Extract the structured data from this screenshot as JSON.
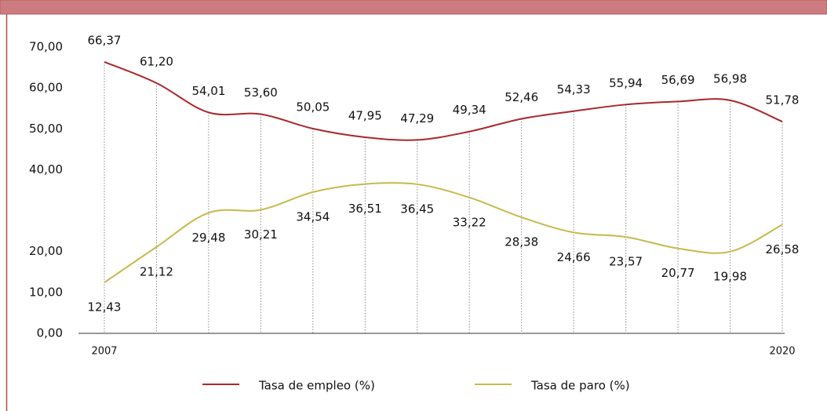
{
  "chart_data": {
    "type": "line",
    "categories": [
      "2007",
      null,
      null,
      null,
      null,
      null,
      null,
      null,
      null,
      null,
      null,
      null,
      null,
      "2020"
    ],
    "series": [
      {
        "name": "Tasa de empleo (%)",
        "color": "#a8282c",
        "values": [
          66.37,
          61.2,
          54.01,
          53.6,
          50.05,
          47.95,
          47.29,
          49.34,
          52.46,
          54.33,
          55.94,
          56.69,
          56.98,
          51.78
        ],
        "value_labels": [
          "66,37",
          "61,20",
          "54,01",
          "53,60",
          "50,05",
          "47,95",
          "47,29",
          "49,34",
          "52,46",
          "54,33",
          "55,94",
          "56,69",
          "56,98",
          "51,78"
        ]
      },
      {
        "name": "Tasa de paro (%)",
        "color": "#c9b84c",
        "values": [
          12.43,
          21.12,
          29.48,
          30.21,
          34.54,
          36.51,
          36.45,
          33.22,
          28.38,
          24.66,
          23.57,
          20.77,
          19.98,
          26.58
        ],
        "value_labels": [
          "12,43",
          "21,12",
          "29,48",
          "30,21",
          "34,54",
          "36,51",
          "36,45",
          "33,22",
          "28,38",
          "24,66",
          "23,57",
          "20,77",
          "19,98",
          "26,58"
        ]
      }
    ],
    "ylim": [
      0,
      70
    ],
    "yticks": [
      {
        "value": 0,
        "label": "0,00"
      },
      {
        "value": 10,
        "label": "10,00"
      },
      {
        "value": 20,
        "label": "20,00"
      },
      {
        "value": 40,
        "label": "40,00"
      },
      {
        "value": 50,
        "label": "50,00"
      },
      {
        "value": 60,
        "label": "60,00"
      },
      {
        "value": 70,
        "label": "70,00"
      }
    ],
    "legend": "bottom"
  }
}
